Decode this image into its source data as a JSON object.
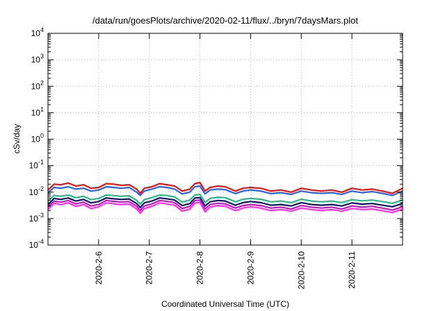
{
  "chart_data": {
    "type": "line",
    "title": "/data/run/goesPlots/archive/2020-02-11/flux/../bryn/7daysMars.plot",
    "xlabel": "Coordinated Universal Time (UTC)",
    "ylabel": "cSv/day",
    "yscale": "log",
    "ylim_exponents": [
      -4,
      4
    ],
    "xlim_days": [
      0,
      7
    ],
    "x_ticks": [
      {
        "label": "2020-2-6",
        "day": 1.0
      },
      {
        "label": "2020-2-7",
        "day": 2.0
      },
      {
        "label": "2020-2-8",
        "day": 3.0
      },
      {
        "label": "2020-2-9",
        "day": 4.0
      },
      {
        "label": "2020-2-10",
        "day": 5.0
      },
      {
        "label": "2020-2-11",
        "day": 6.0
      }
    ],
    "y_ticks": [
      {
        "base": "10",
        "exp": "-4",
        "value": 0.0001
      },
      {
        "base": "10",
        "exp": "-3",
        "value": 0.001
      },
      {
        "base": "10",
        "exp": "-2",
        "value": 0.01
      },
      {
        "base": "10",
        "exp": "-1",
        "value": 0.1
      },
      {
        "base": "10",
        "exp": "0",
        "value": 1
      },
      {
        "base": "10",
        "exp": "1",
        "value": 10
      },
      {
        "base": "10",
        "exp": "2",
        "value": 100
      },
      {
        "base": "10",
        "exp": "3",
        "value": 1000
      },
      {
        "base": "10",
        "exp": "4",
        "value": 10000
      }
    ],
    "grid": true,
    "series": [
      {
        "color": "#ee1111",
        "x": [
          0,
          0.12,
          0.25,
          0.4,
          0.55,
          0.7,
          0.85,
          1.0,
          1.15,
          1.3,
          1.45,
          1.6,
          1.75,
          1.82,
          1.9,
          2.05,
          2.2,
          2.35,
          2.5,
          2.65,
          2.8,
          2.9,
          3.0,
          3.1,
          3.2,
          3.35,
          3.5,
          3.7,
          3.85,
          4.0,
          4.2,
          4.4,
          4.6,
          4.8,
          5.0,
          5.2,
          5.4,
          5.6,
          5.8,
          6.0,
          6.2,
          6.4,
          6.6,
          6.8,
          7.0
        ],
        "y": [
          0.012,
          0.02,
          0.019,
          0.022,
          0.017,
          0.019,
          0.014,
          0.015,
          0.021,
          0.02,
          0.018,
          0.019,
          0.013,
          0.009,
          0.014,
          0.016,
          0.021,
          0.019,
          0.017,
          0.011,
          0.013,
          0.021,
          0.023,
          0.011,
          0.015,
          0.017,
          0.016,
          0.011,
          0.014,
          0.015,
          0.014,
          0.011,
          0.012,
          0.01,
          0.014,
          0.012,
          0.011,
          0.012,
          0.01,
          0.014,
          0.012,
          0.013,
          0.011,
          0.009,
          0.014
        ]
      },
      {
        "color": "#2266ee",
        "x": [
          0,
          0.12,
          0.25,
          0.4,
          0.55,
          0.7,
          0.85,
          1.0,
          1.15,
          1.3,
          1.45,
          1.6,
          1.75,
          1.82,
          1.9,
          2.05,
          2.2,
          2.35,
          2.5,
          2.65,
          2.8,
          2.9,
          3.0,
          3.1,
          3.2,
          3.35,
          3.5,
          3.7,
          3.85,
          4.0,
          4.2,
          4.4,
          4.6,
          4.8,
          5.0,
          5.2,
          5.4,
          5.6,
          5.8,
          6.0,
          6.2,
          6.4,
          6.6,
          6.8,
          7.0
        ],
        "y": [
          0.0095,
          0.015,
          0.014,
          0.016,
          0.013,
          0.014,
          0.011,
          0.012,
          0.016,
          0.015,
          0.014,
          0.015,
          0.01,
          0.0075,
          0.011,
          0.013,
          0.016,
          0.015,
          0.013,
          0.0085,
          0.01,
          0.016,
          0.017,
          0.0085,
          0.012,
          0.013,
          0.0125,
          0.0088,
          0.011,
          0.012,
          0.011,
          0.0088,
          0.0095,
          0.0082,
          0.011,
          0.0095,
          0.009,
          0.0095,
          0.0082,
          0.011,
          0.0095,
          0.0105,
          0.009,
          0.0075,
          0.011
        ]
      },
      {
        "color": "#22bb88",
        "x": [
          0,
          0.12,
          0.25,
          0.4,
          0.55,
          0.7,
          0.85,
          1.0,
          1.15,
          1.3,
          1.45,
          1.6,
          1.75,
          1.82,
          1.9,
          2.05,
          2.2,
          2.35,
          2.5,
          2.65,
          2.8,
          2.9,
          3.0,
          3.1,
          3.2,
          3.35,
          3.5,
          3.7,
          3.85,
          4.0,
          4.2,
          4.4,
          4.6,
          4.8,
          5.0,
          5.2,
          5.4,
          5.6,
          5.8,
          6.0,
          6.2,
          6.4,
          6.6,
          6.8,
          7.0
        ],
        "y": [
          0.0045,
          0.0075,
          0.007,
          0.0078,
          0.0062,
          0.007,
          0.0052,
          0.0058,
          0.0078,
          0.0074,
          0.007,
          0.0073,
          0.0049,
          0.0035,
          0.0052,
          0.0062,
          0.0078,
          0.0074,
          0.0066,
          0.0042,
          0.005,
          0.0078,
          0.0082,
          0.0041,
          0.0058,
          0.0064,
          0.0062,
          0.0043,
          0.0054,
          0.0058,
          0.0054,
          0.0043,
          0.0046,
          0.004,
          0.0054,
          0.0046,
          0.0043,
          0.0046,
          0.004,
          0.0052,
          0.0047,
          0.005,
          0.0044,
          0.0038,
          0.005
        ]
      },
      {
        "color": "#111166",
        "x": [
          0,
          0.12,
          0.25,
          0.4,
          0.55,
          0.7,
          0.85,
          1.0,
          1.15,
          1.3,
          1.45,
          1.6,
          1.75,
          1.82,
          1.9,
          2.05,
          2.2,
          2.35,
          2.5,
          2.65,
          2.8,
          2.9,
          3.0,
          3.1,
          3.2,
          3.35,
          3.5,
          3.7,
          3.85,
          4.0,
          4.2,
          4.4,
          4.6,
          4.8,
          5.0,
          5.2,
          5.4,
          5.6,
          5.8,
          6.0,
          6.2,
          6.4,
          6.6,
          6.8,
          7.0
        ],
        "y": [
          0.0033,
          0.0058,
          0.0053,
          0.006,
          0.0046,
          0.0053,
          0.0039,
          0.0044,
          0.006,
          0.0056,
          0.0053,
          0.0055,
          0.0037,
          0.0026,
          0.0039,
          0.0046,
          0.006,
          0.0056,
          0.005,
          0.0031,
          0.0037,
          0.006,
          0.0062,
          0.003,
          0.0043,
          0.0048,
          0.0046,
          0.0032,
          0.004,
          0.0044,
          0.004,
          0.0032,
          0.0034,
          0.003,
          0.004,
          0.0034,
          0.0032,
          0.0034,
          0.003,
          0.0039,
          0.0035,
          0.0037,
          0.0032,
          0.0028,
          0.0037
        ]
      },
      {
        "color": "#cc11cc",
        "x": [
          0,
          0.12,
          0.25,
          0.4,
          0.55,
          0.7,
          0.85,
          1.0,
          1.15,
          1.3,
          1.45,
          1.6,
          1.75,
          1.82,
          1.9,
          2.05,
          2.2,
          2.35,
          2.5,
          2.65,
          2.8,
          2.9,
          3.0,
          3.1,
          3.2,
          3.35,
          3.5,
          3.7,
          3.85,
          4.0,
          4.2,
          4.4,
          4.6,
          4.8,
          5.0,
          5.2,
          5.4,
          5.6,
          5.8,
          6.0,
          6.2,
          6.4,
          6.6,
          6.8,
          7.0
        ],
        "y": [
          0.0027,
          0.0046,
          0.0042,
          0.0048,
          0.0036,
          0.0042,
          0.003,
          0.0034,
          0.0048,
          0.0045,
          0.0042,
          0.0044,
          0.0029,
          0.002,
          0.003,
          0.0036,
          0.0048,
          0.0045,
          0.004,
          0.0024,
          0.0029,
          0.0048,
          0.005,
          0.0023,
          0.0034,
          0.0038,
          0.0036,
          0.0025,
          0.0031,
          0.0034,
          0.0031,
          0.0025,
          0.0027,
          0.0023,
          0.0031,
          0.0027,
          0.0025,
          0.0027,
          0.0023,
          0.003,
          0.0027,
          0.0029,
          0.0025,
          0.0021,
          0.0028
        ]
      },
      {
        "color": "#ff33dd",
        "x": [
          0,
          0.12,
          0.25,
          0.4,
          0.55,
          0.7,
          0.85,
          1.0,
          1.15,
          1.3,
          1.45,
          1.6,
          1.75,
          1.82,
          1.9,
          2.05,
          2.2,
          2.35,
          2.5,
          2.65,
          2.8,
          2.9,
          3.0,
          3.1,
          3.2,
          3.35,
          3.5,
          3.7,
          3.85,
          4.0,
          4.2,
          4.4,
          4.6,
          4.8,
          5.0,
          5.2,
          5.4,
          5.6,
          5.8,
          6.0,
          6.2,
          6.4,
          6.6,
          6.8,
          7.0
        ],
        "y": [
          0.0022,
          0.0038,
          0.0034,
          0.0039,
          0.0029,
          0.0034,
          0.0024,
          0.0028,
          0.0039,
          0.0036,
          0.0034,
          0.0036,
          0.0023,
          0.0016,
          0.0024,
          0.0029,
          0.0039,
          0.0036,
          0.0032,
          0.0019,
          0.0023,
          0.0039,
          0.0041,
          0.0018,
          0.0027,
          0.0031,
          0.0029,
          0.002,
          0.0025,
          0.0028,
          0.0025,
          0.002,
          0.0022,
          0.0019,
          0.0025,
          0.0022,
          0.002,
          0.0022,
          0.0019,
          0.0024,
          0.0022,
          0.0023,
          0.002,
          0.0017,
          0.0023
        ]
      }
    ]
  }
}
